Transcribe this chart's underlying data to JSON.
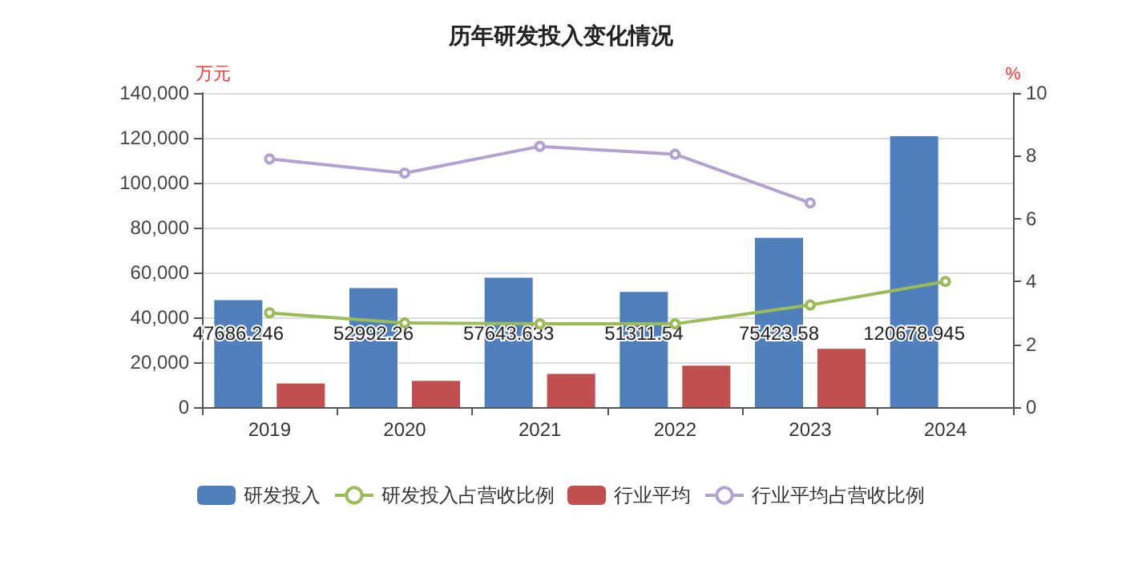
{
  "chart_data": {
    "type": "bar",
    "title": "历年研发投入变化情况",
    "ylabel": "万元",
    "y2label": "%",
    "categories": [
      "2019",
      "2020",
      "2021",
      "2022",
      "2023",
      "2024"
    ],
    "series": [
      {
        "name": "研发投入",
        "color": "#4f7fbd",
        "values": [
          47686.246,
          52992.26,
          57643.633,
          51311.54,
          75423.58,
          120678.945
        ],
        "value_labels": [
          "47686.246",
          "52992.26",
          "57643.633",
          "51311.54",
          "75423.58",
          "120678.945"
        ]
      },
      {
        "name": "研发投入占营收比例",
        "type": "line",
        "axis": "y2",
        "color": "#9bbb59",
        "values": [
          3.0,
          2.68,
          2.65,
          2.65,
          3.25,
          4.0
        ]
      },
      {
        "name": "行业平均",
        "color": "#c0504d",
        "values": [
          10500,
          11700,
          14800,
          18500,
          26000,
          null
        ]
      },
      {
        "name": "行业平均占营收比例",
        "type": "line",
        "axis": "y2",
        "color": "#b3a2d1",
        "values": [
          7.9,
          7.45,
          8.3,
          8.05,
          6.5,
          null
        ]
      }
    ],
    "ylim": [
      0,
      140000
    ],
    "yticks": [
      0,
      {
        "value": 20000,
        "label": "20,000"
      },
      {
        "value": 40000,
        "label": "40,000"
      },
      {
        "value": 60000,
        "label": "60,000"
      },
      {
        "value": 80000,
        "label": "80,000"
      },
      {
        "value": 100000,
        "label": "100,000"
      },
      {
        "value": 120000,
        "label": "120,000"
      },
      {
        "value": 140000,
        "label": "140,000"
      }
    ],
    "y2lim": [
      0,
      10
    ],
    "y2ticks": [
      0,
      2,
      4,
      6,
      8,
      10
    ],
    "grid": "y",
    "legend": "bottom",
    "marker": "circle"
  }
}
